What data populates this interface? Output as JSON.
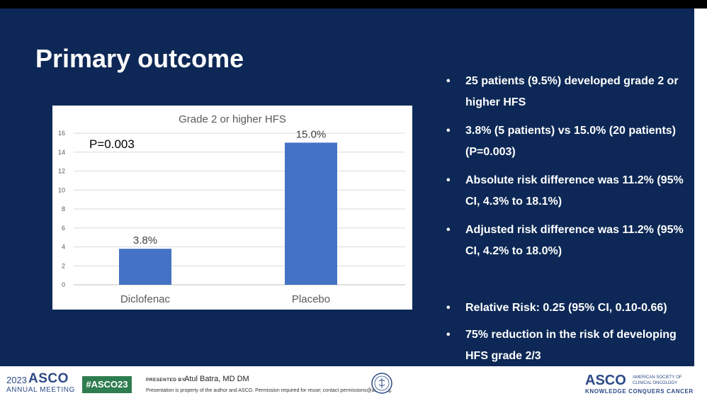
{
  "slide": {
    "title": "Primary outcome",
    "bullets": [
      {
        "symbol": "•",
        "text": "25 patients (9.5%) developed grade 2 or higher HFS"
      },
      {
        "symbol": "•",
        "text": "3.8% (5 patients) vs 15.0% (20 patients) (P=0.003)"
      },
      {
        "symbol": "•",
        "text": "Absolute risk difference was 11.2% (95% CI, 4.3% to 18.1%)"
      },
      {
        "symbol": "•",
        "text": "Adjusted risk difference was 11.2% (95% CI, 4.2% to 18.0%)"
      },
      {
        "symbol": "•",
        "text": "Relative Risk: 0.25   (95% CI, 0.10-0.66)"
      },
      {
        "symbol": "•",
        "text": "75% reduction in the risk of developing HFS grade 2/3"
      }
    ]
  },
  "chart_data": {
    "type": "bar",
    "title": "Grade 2 or higher HFS",
    "annotation": "P=0.003",
    "categories": [
      "Diclofenac",
      "Placebo"
    ],
    "values": [
      3.8,
      15.0
    ],
    "data_labels": [
      "3.8%",
      "15.0%"
    ],
    "yticks": [
      "0",
      "2",
      "4",
      "6",
      "8",
      "10",
      "12",
      "14",
      "16"
    ],
    "ylim": [
      0,
      16
    ],
    "xlabel": "",
    "ylabel": "",
    "grid": true,
    "bar_color": "#4472c4"
  },
  "footer": {
    "year": "2023",
    "org": "ASCO",
    "meeting": "ANNUAL MEETING",
    "hashtag": "#ASCO23",
    "presented_by": "PRESENTED BY:",
    "presenter": "Atul Batra, MD DM",
    "disclaimer": "Presentation is property of the author and ASCO. Permission required for reuse; contact permissions@asco.org.",
    "org_right": "ASCO",
    "society_line1": "AMERICAN SOCIETY OF",
    "society_line2": "CLINICAL ONCOLOGY",
    "tagline": "KNOWLEDGE CONQUERS CANCER"
  },
  "colors": {
    "slide_bg": "#0d2856",
    "brand_blue": "#2c4a86",
    "hashtag_green": "#2e7d4f"
  }
}
